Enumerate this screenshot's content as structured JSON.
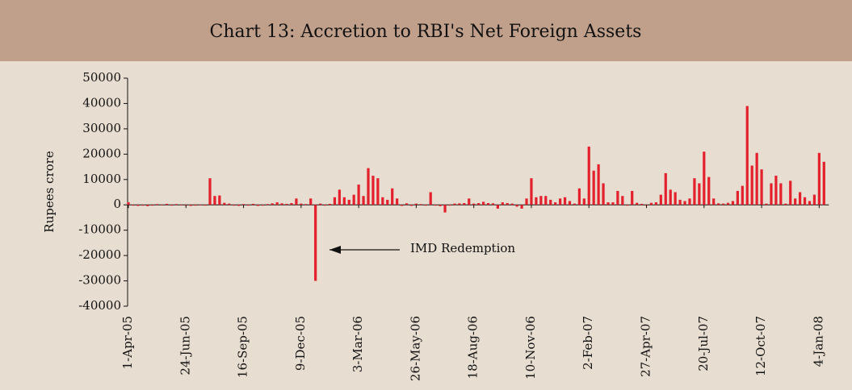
{
  "chart_data": {
    "type": "bar",
    "title": "Chart 13: Accretion to RBI's Net Foreign Assets",
    "y_label": "Rupees crore",
    "annotation": "IMD Redemption",
    "color": "#e3202b",
    "ylim": [
      -40000,
      50000
    ],
    "yticks": [
      -40000,
      -30000,
      -20000,
      -10000,
      0,
      10000,
      20000,
      30000,
      40000,
      50000
    ],
    "categories": [
      "1-Apr-05",
      null,
      null,
      null,
      null,
      null,
      null,
      null,
      null,
      null,
      null,
      null,
      "24-Jun-05",
      null,
      null,
      null,
      null,
      null,
      null,
      null,
      null,
      null,
      null,
      null,
      "16-Sep-05",
      null,
      null,
      null,
      null,
      null,
      null,
      null,
      null,
      null,
      null,
      null,
      "9-Dec-05",
      null,
      null,
      null,
      null,
      null,
      null,
      null,
      null,
      null,
      null,
      null,
      "3-Mar-06",
      null,
      null,
      null,
      null,
      null,
      null,
      null,
      null,
      null,
      null,
      null,
      "26-May-06",
      null,
      null,
      null,
      null,
      null,
      null,
      null,
      null,
      null,
      null,
      null,
      "18-Aug-06",
      null,
      null,
      null,
      null,
      null,
      null,
      null,
      null,
      null,
      null,
      null,
      "10-Nov-06",
      null,
      null,
      null,
      null,
      null,
      null,
      null,
      null,
      null,
      null,
      null,
      "2-Feb-07",
      null,
      null,
      null,
      null,
      null,
      null,
      null,
      null,
      null,
      null,
      null,
      "27-Apr-07",
      null,
      null,
      null,
      null,
      null,
      null,
      null,
      null,
      null,
      null,
      null,
      "20-Jul-07",
      null,
      null,
      null,
      null,
      null,
      null,
      null,
      null,
      null,
      null,
      null,
      "12-Oct-07",
      null,
      null,
      null,
      null,
      null,
      null,
      null,
      null,
      null,
      null,
      null,
      "4-Jan-08",
      null
    ],
    "values": [
      1000,
      -300,
      -400,
      -300,
      -500,
      -300,
      300,
      -200,
      400,
      -300,
      300,
      -200,
      -300,
      -400,
      -300,
      -200,
      -300,
      10500,
      3500,
      3700,
      800,
      500,
      -300,
      -400,
      300,
      -300,
      400,
      -400,
      -300,
      300,
      600,
      1000,
      600,
      400,
      700,
      2500,
      500,
      300,
      2500,
      -30000,
      500,
      -300,
      400,
      3000,
      6000,
      3000,
      2000,
      4000,
      8000,
      3500,
      14500,
      11500,
      10500,
      3000,
      2000,
      6500,
      2500,
      -400,
      600,
      -400,
      500,
      300,
      -300,
      5000,
      -300,
      -500,
      -3000,
      -300,
      500,
      600,
      700,
      2500,
      500,
      700,
      1200,
      700,
      600,
      -1500,
      1000,
      700,
      500,
      -700,
      -1500,
      2500,
      10500,
      3000,
      3500,
      3500,
      2000,
      1000,
      2500,
      3000,
      1500,
      500,
      6500,
      2500,
      23000,
      13500,
      16000,
      8500,
      1000,
      1000,
      5500,
      3500,
      -300,
      5500,
      800,
      400,
      -300,
      800,
      1000,
      4000,
      12500,
      6000,
      5000,
      2000,
      1500,
      2500,
      10500,
      8500,
      21000,
      11000,
      2500,
      600,
      500,
      800,
      1500,
      5500,
      7500,
      39000,
      15500,
      20500,
      14000,
      500,
      8500,
      11500,
      8500,
      500,
      9500,
      2500,
      5000,
      3000,
      1500,
      4000,
      20500,
      17000
    ]
  }
}
